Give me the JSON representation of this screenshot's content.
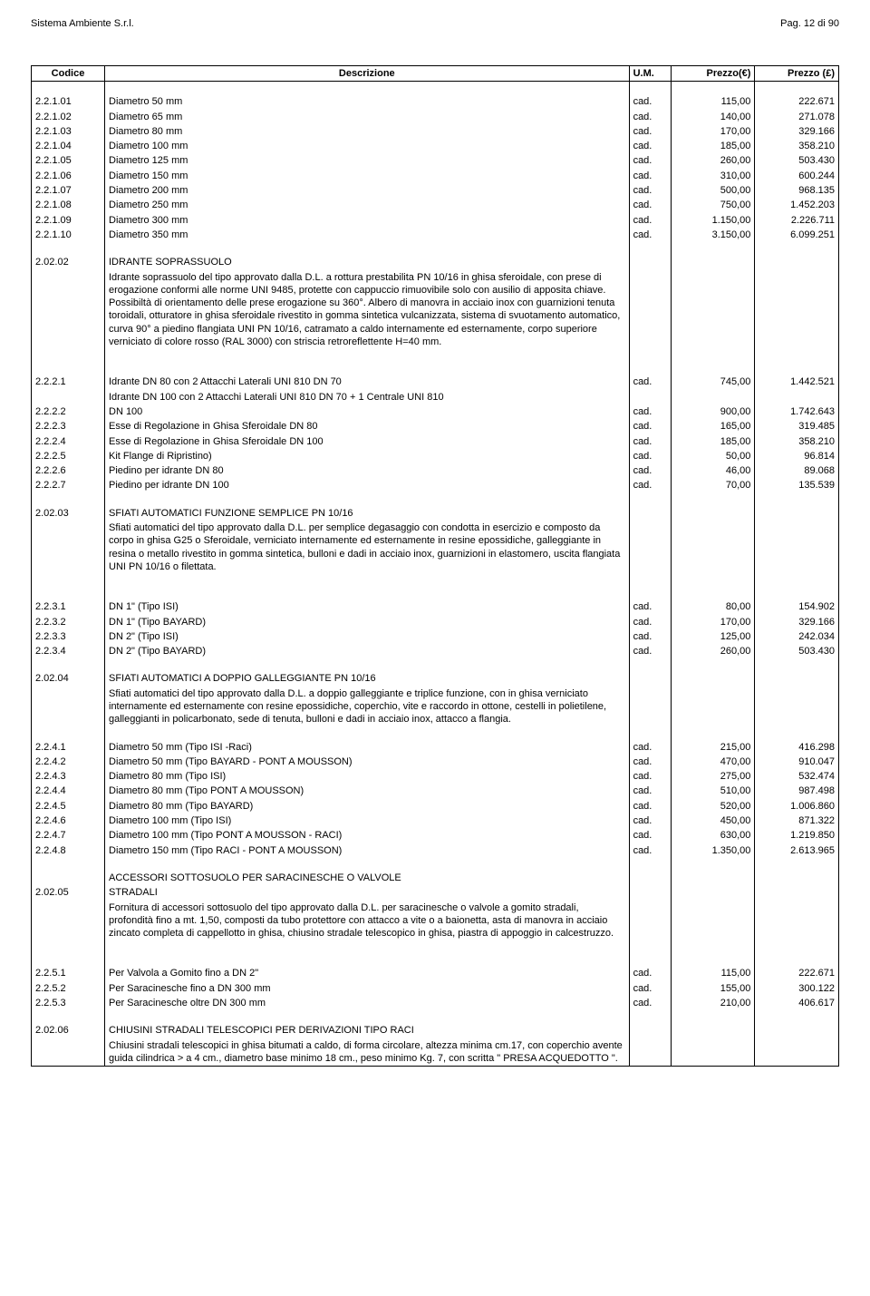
{
  "header": {
    "company": "Sistema Ambiente S.r.l.",
    "page": "Pag. 12 di 90"
  },
  "columns": {
    "codice": "Codice",
    "descrizione": "Descrizione",
    "um": "U.M.",
    "prezzo_e": "Prezzo(€)",
    "prezzo_l": "Prezzo (£)"
  },
  "block1": [
    {
      "c": "2.2.1.01",
      "d": "Diametro 50 mm",
      "u": "cad.",
      "pe": "115,00",
      "pl": "222.671"
    },
    {
      "c": "2.2.1.02",
      "d": "Diametro 65 mm",
      "u": "cad.",
      "pe": "140,00",
      "pl": "271.078"
    },
    {
      "c": "2.2.1.03",
      "d": "Diametro 80 mm",
      "u": "cad.",
      "pe": "170,00",
      "pl": "329.166"
    },
    {
      "c": "2.2.1.04",
      "d": "Diametro 100 mm",
      "u": "cad.",
      "pe": "185,00",
      "pl": "358.210"
    },
    {
      "c": "2.2.1.05",
      "d": "Diametro 125 mm",
      "u": "cad.",
      "pe": "260,00",
      "pl": "503.430"
    },
    {
      "c": "2.2.1.06",
      "d": "Diametro 150 mm",
      "u": "cad.",
      "pe": "310,00",
      "pl": "600.244"
    },
    {
      "c": "2.2.1.07",
      "d": "Diametro 200 mm",
      "u": "cad.",
      "pe": "500,00",
      "pl": "968.135"
    },
    {
      "c": "2.2.1.08",
      "d": "Diametro 250 mm",
      "u": "cad.",
      "pe": "750,00",
      "pl": "1.452.203"
    },
    {
      "c": "2.2.1.09",
      "d": "Diametro 300 mm",
      "u": "cad.",
      "pe": "1.150,00",
      "pl": "2.226.711"
    },
    {
      "c": "2.2.1.10",
      "d": "Diametro 350 mm",
      "u": "cad.",
      "pe": "3.150,00",
      "pl": "6.099.251"
    }
  ],
  "sec202_02": {
    "code": "2.02.02",
    "title": "IDRANTE SOPRASSUOLO",
    "body": "Idrante soprassuolo del tipo approvato dalla D.L. a rottura prestabilita PN 10/16 in ghisa sferoidale, con prese di erogazione conformi alle norme UNI 9485, protette con cappuccio rimuovibile solo con ausilio di apposita chiave. Possibiltà di orientamento delle prese erogazione su 360°. Albero di manovra in acciaio inox con guarnizioni tenuta toroidali, otturatore in ghisa sferoidale rivestito in gomma sintetica vulcanizzata, sistema di svuotamento automatico, curva 90° a piedino flangiata UNI PN 10/16, catramato a caldo internamente ed esternamente, corpo superiore verniciato di colore rosso (RAL 3000) con striscia retroreflettente H=40 mm."
  },
  "block2": [
    {
      "c": "2.2.2.1",
      "d": "Idrante DN 80 con 2 Attacchi Laterali UNI 810 DN 70",
      "u": "cad.",
      "pe": "745,00",
      "pl": "1.442.521"
    },
    {
      "c": "",
      "d": "Idrante DN 100 con 2 Attacchi Laterali UNI 810 DN 70 + 1 Centrale UNI 810",
      "u": "",
      "pe": "",
      "pl": ""
    },
    {
      "c": "2.2.2.2",
      "d": "DN 100",
      "u": "cad.",
      "pe": "900,00",
      "pl": "1.742.643"
    },
    {
      "c": "2.2.2.3",
      "d": "Esse di Regolazione in Ghisa Sferoidale DN 80",
      "u": "cad.",
      "pe": "165,00",
      "pl": "319.485"
    },
    {
      "c": "2.2.2.4",
      "d": "Esse di Regolazione in Ghisa Sferoidale DN 100",
      "u": "cad.",
      "pe": "185,00",
      "pl": "358.210"
    },
    {
      "c": "2.2.2.5",
      "d": "Kit Flange di Ripristino)",
      "u": "cad.",
      "pe": "50,00",
      "pl": "96.814"
    },
    {
      "c": "2.2.2.6",
      "d": "Piedino per idrante DN 80",
      "u": "cad.",
      "pe": "46,00",
      "pl": "89.068"
    },
    {
      "c": "2.2.2.7",
      "d": "Piedino per idrante DN 100",
      "u": "cad.",
      "pe": "70,00",
      "pl": "135.539"
    }
  ],
  "sec202_03": {
    "code": "2.02.03",
    "title": "SFIATI AUTOMATICI FUNZIONE SEMPLICE PN 10/16",
    "body": "Sfiati automatici del tipo approvato dalla D.L. per semplice degasaggio con condotta in esercizio e composto da corpo in ghisa G25 o Sferoidale, verniciato internamente ed esternamente in resine epossidiche, galleggiante in resina o metallo rivestito in gomma sintetica, bulloni e dadi in acciaio inox, guarnizioni in elastomero, uscita flangiata UNI PN 10/16 o filettata."
  },
  "block3": [
    {
      "c": "2.2.3.1",
      "d": "DN 1\" (Tipo ISI)",
      "u": "cad.",
      "pe": "80,00",
      "pl": "154.902"
    },
    {
      "c": "2.2.3.2",
      "d": "DN 1\" (Tipo BAYARD)",
      "u": "cad.",
      "pe": "170,00",
      "pl": "329.166"
    },
    {
      "c": "2.2.3.3",
      "d": "DN 2\" (Tipo ISI)",
      "u": "cad.",
      "pe": "125,00",
      "pl": "242.034"
    },
    {
      "c": "2.2.3.4",
      "d": "DN 2\" (Tipo BAYARD)",
      "u": "cad.",
      "pe": "260,00",
      "pl": "503.430"
    }
  ],
  "sec202_04": {
    "code": "2.02.04",
    "title": "SFIATI AUTOMATICI A DOPPIO GALLEGGIANTE PN 10/16",
    "body": "Sfiati automatici del tipo approvato dalla D.L. a doppio galleggiante e triplice funzione, con in ghisa verniciato internamente ed esternamente con resine epossidiche, coperchio, vite e raccordo in ottone, cestelli in polietilene, galleggianti in policarbonato, sede di tenuta, bulloni e dadi in acciaio inox, attacco a flangia."
  },
  "block4": [
    {
      "c": "2.2.4.1",
      "d": "Diametro 50 mm (Tipo ISI -Raci)",
      "u": "cad.",
      "pe": "215,00",
      "pl": "416.298"
    },
    {
      "c": "2.2.4.2",
      "d": "Diametro 50 mm (Tipo BAYARD - PONT A MOUSSON)",
      "u": "cad.",
      "pe": "470,00",
      "pl": "910.047"
    },
    {
      "c": "2.2.4.3",
      "d": "Diametro 80 mm (Tipo ISI)",
      "u": "cad.",
      "pe": "275,00",
      "pl": "532.474"
    },
    {
      "c": "2.2.4.4",
      "d": "Diametro 80 mm (Tipo PONT A MOUSSON)",
      "u": "cad.",
      "pe": "510,00",
      "pl": "987.498"
    },
    {
      "c": "2.2.4.5",
      "d": "Diametro 80 mm (Tipo BAYARD)",
      "u": "cad.",
      "pe": "520,00",
      "pl": "1.006.860"
    },
    {
      "c": "2.2.4.6",
      "d": "Diametro 100 mm (Tipo ISI)",
      "u": "cad.",
      "pe": "450,00",
      "pl": "871.322"
    },
    {
      "c": "2.2.4.7",
      "d": "Diametro 100 mm (Tipo PONT A MOUSSON - RACI)",
      "u": "cad.",
      "pe": "630,00",
      "pl": "1.219.850"
    },
    {
      "c": "2.2.4.8",
      "d": "Diametro 150 mm (Tipo RACI - PONT A MOUSSON)",
      "u": "cad.",
      "pe": "1.350,00",
      "pl": "2.613.965"
    }
  ],
  "sec202_05": {
    "code": "2.02.05",
    "title_pre": "ACCESSORI SOTTOSUOLO PER SARACINESCHE O VALVOLE",
    "title": "STRADALI",
    "body": "Fornitura di accessori sottosuolo del tipo approvato dalla D.L. per saracinesche o valvole a gomito stradali, profondità fino a mt. 1,50, composti da tubo protettore con attacco a vite o a baionetta, asta di manovra in acciaio zincato completa di cappellotto in ghisa, chiusino stradale telescopico in ghisa, piastra di appoggio in calcestruzzo."
  },
  "block5": [
    {
      "c": "2.2.5.1",
      "d": "Per Valvola a Gomito fino a DN 2\"",
      "u": "cad.",
      "pe": "115,00",
      "pl": "222.671"
    },
    {
      "c": "2.2.5.2",
      "d": "Per Saracinesche fino a DN 300 mm",
      "u": "cad.",
      "pe": "155,00",
      "pl": "300.122"
    },
    {
      "c": "2.2.5.3",
      "d": "Per Saracinesche oltre DN 300 mm",
      "u": "cad.",
      "pe": "210,00",
      "pl": "406.617"
    }
  ],
  "sec202_06": {
    "code": "2.02.06",
    "title": "CHIUSINI STRADALI TELESCOPICI PER DERIVAZIONI TIPO RACI",
    "body": "Chiusini stradali telescopici in ghisa bitumati a caldo, di forma circolare, altezza minima cm.17, con coperchio avente guida cilindrica > a 4 cm., diametro base minimo 18 cm., peso minimo Kg. 7, con scritta \" PRESA ACQUEDOTTO \"."
  }
}
